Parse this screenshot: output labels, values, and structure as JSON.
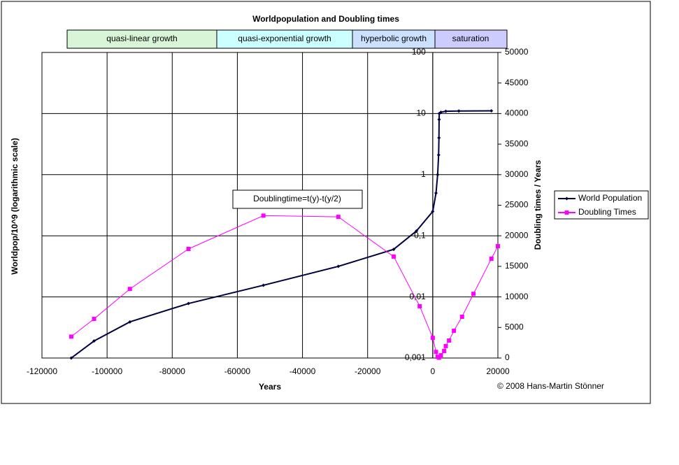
{
  "chart_data": {
    "type": "line",
    "title": "Worldpopulation and Doubling times",
    "xlabel": "Years",
    "ylabel": "Worldpop/10^9 (logarithmic scale)",
    "y2label": "Doubling times / Years",
    "phases": [
      "quasi-linear growth",
      "quasi-exponential growth",
      "hyperbolic growth",
      "saturation"
    ],
    "annotation": "Doublingtime=t(y)-t(y/2)",
    "copyright": "© 2008 Hans-Martin Stönner",
    "xlim": [
      -120000,
      20000
    ],
    "xticks": [
      -120000,
      -100000,
      -80000,
      -60000,
      -40000,
      -20000,
      0,
      20000
    ],
    "ylim": [
      0.001,
      100
    ],
    "ylog": true,
    "yticks": [
      {
        "value": 0.001,
        "label": "0,001"
      },
      {
        "value": 0.01,
        "label": "0,01"
      },
      {
        "value": 0.1,
        "label": "0,1"
      },
      1,
      10,
      100
    ],
    "y2lim": [
      0,
      50000
    ],
    "y2ticks": [
      0,
      5000,
      10000,
      15000,
      20000,
      25000,
      30000,
      35000,
      40000,
      45000,
      50000
    ],
    "grid": true,
    "legend": "right",
    "series": [
      {
        "name": "World Population",
        "color": "#000040",
        "marker": "diamond",
        "x": [
          -111000,
          -104000,
          -93000,
          -75000,
          -52000,
          -29000,
          -12000,
          -5000,
          0,
          1000,
          1500,
          1800,
          1900,
          1950,
          2000,
          2500,
          4000,
          8000,
          18000
        ],
        "values": [
          0.001,
          0.0019,
          0.0039,
          0.0078,
          0.0155,
          0.0316,
          0.06,
          0.12,
          0.25,
          0.5,
          1,
          2.1,
          4,
          8,
          10,
          10.5,
          10.9,
          11,
          11.1
        ]
      },
      {
        "name": "Doubling Times",
        "color": "#ff00ff",
        "marker": "square",
        "axis": "y2",
        "x": [
          -111000,
          -104000,
          -93000,
          -75000,
          -52000,
          -29000,
          -12000,
          -4000,
          0,
          1000,
          1500,
          1900,
          2500,
          3500,
          4000,
          5000,
          6500,
          9000,
          12500,
          18000,
          20000
        ],
        "values": [
          3500,
          6400,
          11300,
          17850,
          23300,
          23100,
          16600,
          8470,
          3300,
          1000,
          200,
          50,
          450,
          1150,
          1950,
          2860,
          4460,
          6750,
          10500,
          16250,
          18300
        ]
      }
    ]
  }
}
